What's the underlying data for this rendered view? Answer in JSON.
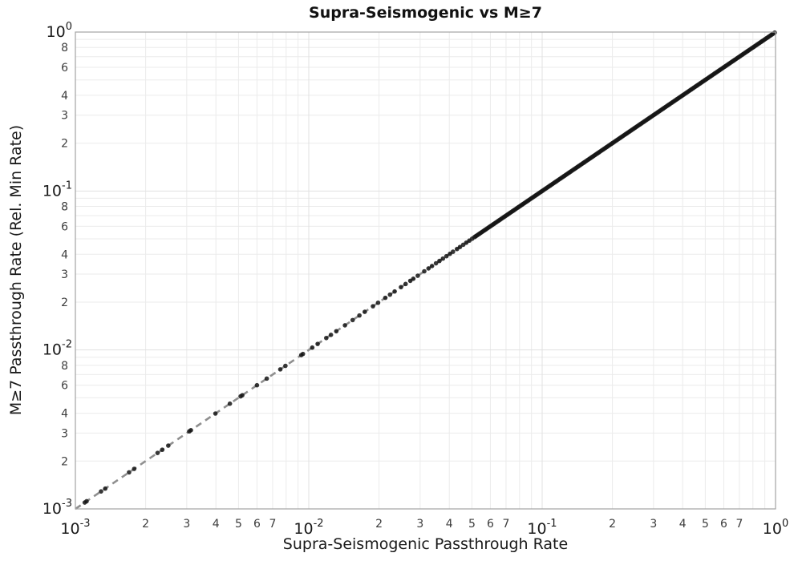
{
  "chart_data": {
    "type": "scatter",
    "title": "Supra-Seismogenic vs M≥7",
    "xlabel": "Supra-Seismogenic Passthrough Rate",
    "ylabel": "M≥7 Passthrough Rate (Rel. Min Rate)",
    "xscale": "log",
    "yscale": "log",
    "xlim": [
      0.001,
      1.0
    ],
    "ylim": [
      0.001,
      1.0
    ],
    "x_major_tick_exponents": [
      -3,
      -2,
      -1,
      0
    ],
    "y_major_tick_exponents": [
      -3,
      -2,
      -1,
      0
    ],
    "x_minor_labeled_digits": [
      2,
      3,
      4,
      5,
      6,
      7
    ],
    "y_minor_labeled_digits": [
      2,
      3,
      4,
      6,
      8
    ],
    "grid": true,
    "legend": "none",
    "identity_line": {
      "relation": "y = x",
      "style": "dashed",
      "color": "#8f8f8f",
      "width": 2.6,
      "dash": "8 6",
      "from": 0.001,
      "to": 1.0
    },
    "marker": {
      "shape": "circle",
      "color": "#151515",
      "radius": 2.8,
      "opacity": 0.85
    },
    "scatter_points_log10_x_equals_y": [
      -2.96,
      -2.952,
      -2.89,
      -2.872,
      -2.77,
      -2.748,
      -2.648,
      -2.628,
      -2.602,
      -2.512,
      -2.505,
      -2.4,
      -2.338,
      -2.292,
      -2.285,
      -2.222,
      -2.18,
      -2.122,
      -2.1,
      -2.032,
      -2.025,
      -1.985,
      -1.962,
      -1.925,
      -1.905,
      -1.882,
      -1.845,
      -1.812,
      -1.783,
      -1.76,
      -1.725,
      -1.703,
      -1.672,
      -1.652,
      -1.632,
      -1.605,
      -1.585,
      -1.565,
      -1.552,
      -1.533,
      -1.505,
      -1.487,
      -1.472,
      -1.455,
      -1.44,
      -1.425,
      -1.41,
      -1.395,
      -1.382,
      -1.365,
      -1.352,
      -1.338,
      -1.325,
      -1.312,
      -1.3,
      -1.29
    ],
    "dense_band_log10": {
      "from": -1.285,
      "to": 0.0,
      "step": 0.0055
    },
    "colors": {
      "grid_minor": "#ebebeb",
      "grid_major": "#e1e1e1",
      "spine": "#a3a3a3",
      "major_tick_label": "#1a1a1a",
      "minor_tick_label": "#3c3c3c",
      "background": "#ffffff"
    }
  }
}
